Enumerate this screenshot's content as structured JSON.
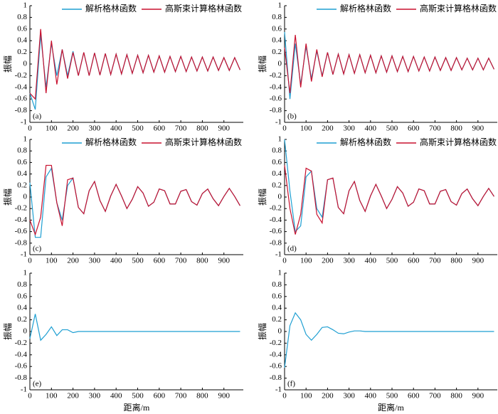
{
  "chart_data": [
    {
      "type": "line",
      "panel_label": "(a)",
      "ylabel": "振幅",
      "x": [
        0,
        25,
        50,
        75,
        100,
        125,
        150,
        175,
        200,
        225,
        250,
        275,
        300,
        325,
        350,
        375,
        400,
        425,
        450,
        475,
        500,
        525,
        550,
        575,
        600,
        625,
        650,
        675,
        700,
        725,
        750,
        775,
        800,
        825,
        850,
        875,
        900,
        925,
        950,
        975
      ],
      "series": [
        {
          "name": "解析格林函数",
          "color": "#1e9fd2",
          "values": [
            -0.5,
            -0.78,
            0.5,
            -0.4,
            0.35,
            -0.2,
            0.25,
            -0.2,
            0.22,
            -0.2,
            0.2,
            -0.2,
            0.19,
            -0.19,
            0.18,
            -0.18,
            0.17,
            -0.17,
            0.16,
            -0.16,
            0.15,
            -0.15,
            0.15,
            -0.14,
            0.14,
            -0.14,
            0.13,
            -0.13,
            0.13,
            -0.13,
            0.12,
            -0.12,
            0.12,
            -0.12,
            0.12,
            -0.11,
            0.11,
            -0.11,
            0.11,
            -0.1
          ]
        },
        {
          "name": "高斯束计算格林函数",
          "color": "#c8102e",
          "values": [
            -0.5,
            -0.6,
            0.6,
            -0.5,
            0.4,
            -0.35,
            0.25,
            -0.25,
            0.2,
            -0.2,
            0.2,
            -0.2,
            0.19,
            -0.19,
            0.18,
            -0.18,
            0.17,
            -0.17,
            0.16,
            -0.16,
            0.15,
            -0.15,
            0.15,
            -0.14,
            0.14,
            -0.14,
            0.13,
            -0.13,
            0.13,
            -0.13,
            0.12,
            -0.12,
            0.12,
            -0.12,
            0.12,
            -0.11,
            0.11,
            -0.11,
            0.11,
            -0.1
          ]
        }
      ],
      "xlim": [
        0,
        990
      ],
      "ylim": [
        -1,
        1
      ],
      "xticks": [
        0,
        100,
        200,
        300,
        400,
        500,
        600,
        700,
        800,
        900
      ],
      "yticks": [
        -1,
        -0.8,
        -0.6,
        -0.4,
        -0.2,
        0,
        0.2,
        0.4,
        0.6,
        0.8,
        1
      ]
    },
    {
      "type": "line",
      "panel_label": "(b)",
      "ylabel": "振幅",
      "x": [
        0,
        25,
        50,
        75,
        100,
        125,
        150,
        175,
        200,
        225,
        250,
        275,
        300,
        325,
        350,
        375,
        400,
        425,
        450,
        475,
        500,
        525,
        550,
        575,
        600,
        625,
        650,
        675,
        700,
        725,
        750,
        775,
        800,
        825,
        850,
        875,
        900,
        925,
        950,
        975
      ],
      "series": [
        {
          "name": "解析格林函数",
          "color": "#1e9fd2",
          "values": [
            0.55,
            -0.6,
            0.35,
            -0.35,
            0.3,
            -0.25,
            0.22,
            -0.2,
            0.2,
            -0.18,
            0.17,
            -0.17,
            0.16,
            -0.16,
            0.16,
            -0.15,
            0.15,
            -0.15,
            0.14,
            -0.14,
            0.14,
            -0.13,
            0.13,
            -0.13,
            0.13,
            -0.12,
            0.12,
            -0.12,
            0.12,
            -0.11,
            0.11,
            -0.11,
            0.11,
            -0.1,
            0.1,
            -0.1,
            0.1,
            -0.1,
            0.1,
            -0.09
          ]
        },
        {
          "name": "高斯束计算格林函数",
          "color": "#c8102e",
          "values": [
            0.28,
            -0.5,
            0.5,
            -0.4,
            0.35,
            -0.3,
            0.25,
            -0.22,
            0.2,
            -0.18,
            0.17,
            -0.17,
            0.16,
            -0.16,
            0.16,
            -0.15,
            0.15,
            -0.15,
            0.14,
            -0.14,
            0.14,
            -0.13,
            0.13,
            -0.13,
            0.13,
            -0.12,
            0.12,
            -0.12,
            0.12,
            -0.11,
            0.11,
            -0.11,
            0.11,
            -0.1,
            0.1,
            -0.1,
            0.1,
            -0.1,
            0.1,
            -0.09
          ]
        }
      ],
      "xlim": [
        0,
        990
      ],
      "ylim": [
        -1,
        1
      ],
      "xticks": [
        0,
        100,
        200,
        300,
        400,
        500,
        600,
        700,
        800,
        900
      ],
      "yticks": [
        -1,
        -0.8,
        -0.6,
        -0.4,
        -0.2,
        0,
        0.2,
        0.4,
        0.6,
        0.8,
        1
      ]
    },
    {
      "type": "line",
      "panel_label": "(c)",
      "ylabel": "振幅",
      "x": [
        0,
        25,
        50,
        75,
        100,
        125,
        150,
        175,
        200,
        225,
        250,
        275,
        300,
        325,
        350,
        375,
        400,
        425,
        450,
        475,
        500,
        525,
        550,
        575,
        600,
        625,
        650,
        675,
        700,
        725,
        750,
        775,
        800,
        825,
        850,
        875,
        900,
        925,
        950,
        975
      ],
      "series": [
        {
          "name": "解析格林函数",
          "color": "#1e9fd2",
          "values": [
            0.25,
            -0.7,
            -0.7,
            0.35,
            0.5,
            -0.1,
            -0.4,
            0.2,
            0.33,
            -0.18,
            -0.29,
            0.11,
            0.27,
            -0.06,
            -0.25,
            0.02,
            0.22,
            0.02,
            -0.2,
            -0.04,
            0.18,
            0.07,
            -0.16,
            -0.09,
            0.14,
            0.11,
            -0.12,
            -0.12,
            0.1,
            0.13,
            -0.08,
            -0.14,
            0.06,
            0.14,
            -0.03,
            -0.15,
            0.01,
            0.15,
            0.01,
            -0.15
          ]
        },
        {
          "name": "高斯束计算格林函数",
          "color": "#c8102e",
          "values": [
            -0.4,
            -0.65,
            -0.35,
            0.55,
            0.55,
            -0.1,
            -0.5,
            0.3,
            0.33,
            -0.18,
            -0.29,
            0.11,
            0.27,
            -0.06,
            -0.25,
            0.02,
            0.22,
            0.02,
            -0.2,
            -0.04,
            0.18,
            0.07,
            -0.16,
            -0.09,
            0.14,
            0.11,
            -0.12,
            -0.12,
            0.1,
            0.13,
            -0.08,
            -0.14,
            0.06,
            0.14,
            -0.03,
            -0.15,
            0.01,
            0.15,
            0.01,
            -0.15
          ]
        }
      ],
      "xlim": [
        0,
        990
      ],
      "ylim": [
        -1,
        1
      ],
      "xticks": [
        0,
        100,
        200,
        300,
        400,
        500,
        600,
        700,
        800,
        900
      ],
      "yticks": [
        -1,
        -0.8,
        -0.6,
        -0.4,
        -0.2,
        0,
        0.2,
        0.4,
        0.6,
        0.8,
        1
      ]
    },
    {
      "type": "line",
      "panel_label": "(d)",
      "ylabel": "振幅",
      "x": [
        0,
        25,
        50,
        75,
        100,
        125,
        150,
        175,
        200,
        225,
        250,
        275,
        300,
        325,
        350,
        375,
        400,
        425,
        450,
        475,
        500,
        525,
        550,
        575,
        600,
        625,
        650,
        675,
        700,
        725,
        750,
        775,
        800,
        825,
        850,
        875,
        900,
        925,
        950,
        975
      ],
      "series": [
        {
          "name": "解析格林函数",
          "color": "#1e9fd2",
          "values": [
            1,
            0.1,
            -0.6,
            -0.5,
            0.35,
            0.45,
            -0.2,
            -0.35,
            0.3,
            0.33,
            -0.18,
            -0.29,
            0.11,
            0.27,
            -0.06,
            -0.25,
            0.02,
            0.22,
            0.02,
            -0.2,
            -0.04,
            0.18,
            0.07,
            -0.16,
            -0.09,
            0.14,
            0.11,
            -0.12,
            -0.12,
            0.1,
            0.13,
            -0.08,
            -0.14,
            0.06,
            0.14,
            -0.03,
            -0.15,
            0.01,
            0.15,
            0.01
          ]
        },
        {
          "name": "高斯束计算格林函数",
          "color": "#c8102e",
          "values": [
            0.55,
            -0.2,
            -0.65,
            -0.3,
            0.5,
            0.45,
            -0.3,
            -0.45,
            0.3,
            0.33,
            -0.18,
            -0.29,
            0.11,
            0.27,
            -0.06,
            -0.25,
            0.02,
            0.22,
            0.02,
            -0.2,
            -0.04,
            0.18,
            0.07,
            -0.16,
            -0.09,
            0.14,
            0.11,
            -0.12,
            -0.12,
            0.1,
            0.13,
            -0.08,
            -0.14,
            0.06,
            0.14,
            -0.03,
            -0.15,
            0.01,
            0.15,
            0.01
          ]
        }
      ],
      "xlim": [
        0,
        990
      ],
      "ylim": [
        -1,
        1
      ],
      "xticks": [
        0,
        100,
        200,
        300,
        400,
        500,
        600,
        700,
        800,
        900
      ],
      "yticks": [
        -1,
        -0.8,
        -0.6,
        -0.4,
        -0.2,
        0,
        0.2,
        0.4,
        0.6,
        0.8,
        1
      ]
    },
    {
      "type": "line",
      "panel_label": "(e)",
      "ylabel": "振幅",
      "xlabel": "距离/m",
      "x": [
        0,
        25,
        50,
        75,
        100,
        125,
        150,
        175,
        200,
        225,
        250,
        275,
        300,
        325,
        350,
        375,
        400,
        425,
        450,
        475,
        500,
        525,
        550,
        575,
        600,
        625,
        650,
        675,
        700,
        725,
        750,
        775,
        800,
        825,
        850,
        875,
        900,
        925,
        950,
        975
      ],
      "series": [
        {
          "color": "#1e9fd2",
          "values": [
            -0.12,
            0.3,
            -0.15,
            -0.05,
            0.08,
            -0.07,
            0.03,
            0.03,
            -0.02,
            0,
            0,
            0,
            0,
            0,
            0,
            0,
            0,
            0,
            0,
            0,
            0,
            0,
            0,
            0,
            0,
            0,
            0,
            0,
            0,
            0,
            0,
            0,
            0,
            0,
            0,
            0,
            0,
            0,
            0,
            0
          ]
        }
      ],
      "xlim": [
        0,
        990
      ],
      "ylim": [
        -1,
        1
      ],
      "xticks": [
        0,
        100,
        200,
        300,
        400,
        500,
        600,
        700,
        800,
        900
      ],
      "yticks": [
        -1,
        -0.8,
        -0.6,
        -0.4,
        -0.2,
        0,
        0.2,
        0.4,
        0.6,
        0.8,
        1
      ]
    },
    {
      "type": "line",
      "panel_label": "(f)",
      "ylabel": "振幅",
      "xlabel": "距离/m",
      "x": [
        0,
        25,
        50,
        75,
        100,
        125,
        150,
        175,
        200,
        225,
        250,
        275,
        300,
        325,
        350,
        375,
        400,
        425,
        450,
        475,
        500,
        525,
        550,
        575,
        600,
        625,
        650,
        675,
        700,
        725,
        750,
        775,
        800,
        825,
        850,
        875,
        900,
        925,
        950,
        975
      ],
      "series": [
        {
          "color": "#1e9fd2",
          "values": [
            -0.62,
            0.1,
            0.32,
            0.2,
            -0.05,
            -0.15,
            -0.05,
            0.07,
            0.08,
            0.03,
            -0.03,
            -0.04,
            -0.01,
            0.01,
            0.01,
            0,
            0,
            0,
            0,
            0,
            0,
            0,
            0,
            0,
            0,
            0,
            0,
            0,
            0,
            0,
            0,
            0,
            0,
            0,
            0,
            0,
            0,
            0,
            0,
            0
          ]
        }
      ],
      "xlim": [
        0,
        990
      ],
      "ylim": [
        -1,
        1
      ],
      "xticks": [
        0,
        100,
        200,
        300,
        400,
        500,
        600,
        700,
        800,
        900
      ],
      "yticks": [
        -1,
        -0.8,
        -0.6,
        -0.4,
        -0.2,
        0,
        0.2,
        0.4,
        0.6,
        0.8,
        1
      ]
    }
  ]
}
